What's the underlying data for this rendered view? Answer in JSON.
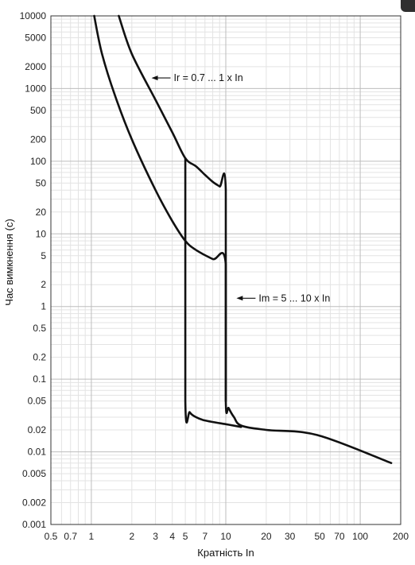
{
  "chart_data": {
    "type": "line",
    "xlabel": "Кратність In",
    "ylabel": "Час вимкнення (с)",
    "xscale": "log",
    "yscale": "log",
    "xlim": [
      0.5,
      200
    ],
    "ylim": [
      0.001,
      10000
    ],
    "grid": true,
    "x_ticks": [
      "0.5",
      "0.7",
      "1",
      "2",
      "3",
      "4",
      "5",
      "7",
      "10",
      "20",
      "30",
      "50",
      "70",
      "100",
      "200"
    ],
    "y_ticks": [
      "10000",
      "5000",
      "2000",
      "1000",
      "500",
      "200",
      "100",
      "50",
      "20",
      "10",
      "5",
      "2",
      "1",
      "0.5",
      "0.2",
      "0.1",
      "0.05",
      "0.02",
      "0.01",
      "0.005",
      "0.002",
      "0.001"
    ],
    "series": [
      {
        "points": [
          [
            1.05,
            10000
          ],
          [
            1.2,
            3000
          ],
          [
            1.5,
            800
          ],
          [
            2,
            200
          ],
          [
            3,
            40
          ],
          [
            4,
            15
          ],
          [
            5,
            8
          ],
          [
            6,
            6
          ],
          [
            8,
            4.5
          ],
          [
            10,
            3.8
          ],
          [
            10,
            0.05
          ],
          [
            10.5,
            0.04
          ],
          [
            11.5,
            0.03
          ],
          [
            13,
            0.023
          ],
          [
            20,
            0.02
          ],
          [
            48,
            0.017
          ],
          [
            170,
            0.007
          ]
        ]
      },
      {
        "points": [
          [
            1.6,
            10000
          ],
          [
            2,
            3000
          ],
          [
            3,
            700
          ],
          [
            4,
            250
          ],
          [
            5,
            110
          ],
          [
            6,
            85
          ],
          [
            7,
            65
          ],
          [
            8,
            52
          ],
          [
            9,
            45
          ],
          [
            10,
            40
          ],
          [
            10,
            0.05
          ]
        ]
      },
      {
        "points": [
          [
            5,
            110
          ],
          [
            5,
            0.05
          ],
          [
            5.4,
            0.035
          ],
          [
            6,
            0.03
          ],
          [
            7,
            0.027
          ],
          [
            10,
            0.024
          ],
          [
            13,
            0.022
          ]
        ]
      }
    ],
    "annotations": [
      {
        "text": "Ir = 0.7 ... 1 x In",
        "arrow_to": [
          2.8,
          1400
        ]
      },
      {
        "text": "Im = 5 ... 10 x In",
        "arrow_to": [
          12,
          1.3
        ]
      }
    ]
  }
}
